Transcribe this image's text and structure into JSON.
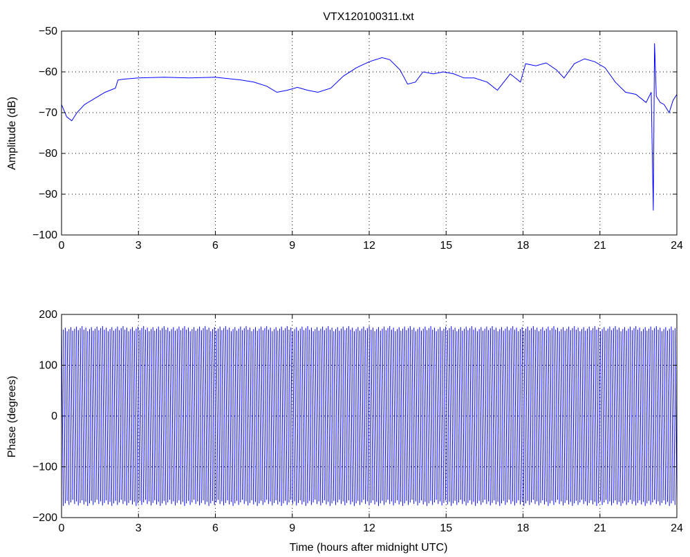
{
  "figure": {
    "background": "#ffffff",
    "line_color": "#0000ff",
    "grid_color": "#000000"
  },
  "chart_data": [
    {
      "type": "line",
      "title": "VTX120100311.txt",
      "xlabel": "",
      "ylabel": "Amplitude (dB)",
      "xlim": [
        0,
        24
      ],
      "ylim": [
        -100,
        -50
      ],
      "grid": true,
      "x_ticks": [
        "0",
        "3",
        "6",
        "9",
        "12",
        "15",
        "18",
        "21",
        "24"
      ],
      "y_ticks": [
        "−50",
        "−60",
        "−70",
        "−80",
        "−90",
        "−100"
      ],
      "series": [
        {
          "x": [
            0,
            0.2,
            0.4,
            0.6,
            0.9,
            1.3,
            1.7,
            2.1,
            2.2,
            2.4,
            3,
            4,
            5,
            6,
            7,
            7.5,
            8,
            8.4,
            8.8,
            9.2,
            9.6,
            10,
            10.5,
            11,
            11.5,
            12,
            12.5,
            12.8,
            13.2,
            13.5,
            13.8,
            14.1,
            14.5,
            14.9,
            15.3,
            15.7,
            16.1,
            16.6,
            17,
            17.5,
            17.9,
            18.1,
            18.5,
            18.9,
            19.3,
            19.6,
            20,
            20.4,
            20.8,
            21.2,
            21.6,
            22,
            22.4,
            22.8,
            23,
            23.08,
            23.13,
            23.2,
            23.35,
            23.5,
            23.7,
            23.85,
            24
          ],
          "y": [
            -68,
            -71,
            -72,
            -70,
            -68,
            -66.5,
            -65,
            -64,
            -62,
            -61.8,
            -61.5,
            -61.3,
            -61.5,
            -61.3,
            -62,
            -62.5,
            -63.5,
            -65,
            -64.5,
            -63.8,
            -64.5,
            -65,
            -64,
            -61,
            -59,
            -57.5,
            -56.5,
            -57,
            -59.5,
            -63,
            -62.5,
            -60,
            -60.5,
            -60,
            -60.5,
            -61.5,
            -61.5,
            -62.5,
            -64.5,
            -60.5,
            -62.5,
            -58,
            -58.5,
            -57.8,
            -59.5,
            -61.5,
            -58,
            -56.8,
            -57.5,
            -59,
            -62.5,
            -65,
            -65.5,
            -67.5,
            -65,
            -94,
            -53,
            -66,
            -67.5,
            -68,
            -70,
            -67,
            -65.5
          ]
        }
      ]
    },
    {
      "type": "line",
      "title": "",
      "xlabel": "Time (hours after midnight UTC)",
      "ylabel": "Phase (degrees)",
      "xlim": [
        0,
        24
      ],
      "ylim": [
        -200,
        200
      ],
      "grid": true,
      "x_ticks": [
        "0",
        "3",
        "6",
        "9",
        "12",
        "15",
        "18",
        "21",
        "24"
      ],
      "y_ticks": [
        "200",
        "100",
        "0",
        "−100",
        "−200"
      ],
      "series": [
        {
          "description_kind": "wrapped phase sawtooth",
          "range": [
            -180,
            180
          ],
          "cycles": 330
        }
      ]
    }
  ]
}
